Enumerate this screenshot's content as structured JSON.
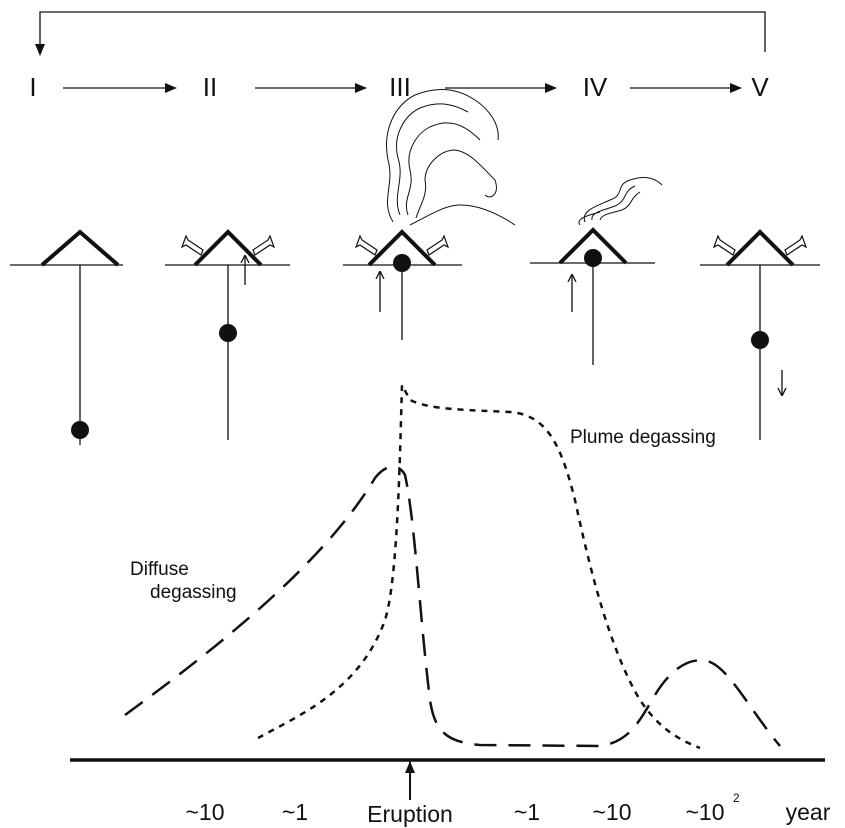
{
  "stages": [
    "I",
    "II",
    "III",
    "IV",
    "V"
  ],
  "labels": {
    "plume": "Plume degassing",
    "diffuse": [
      "Diffuse",
      "degassing"
    ]
  },
  "time_axis": {
    "ticks": [
      {
        "text": "~10"
      },
      {
        "text": "~1"
      },
      {
        "text": "Eruption"
      },
      {
        "text": "~1"
      },
      {
        "text": "~10"
      },
      {
        "text": "~10",
        "superscript": "2"
      }
    ],
    "unit": "year"
  }
}
